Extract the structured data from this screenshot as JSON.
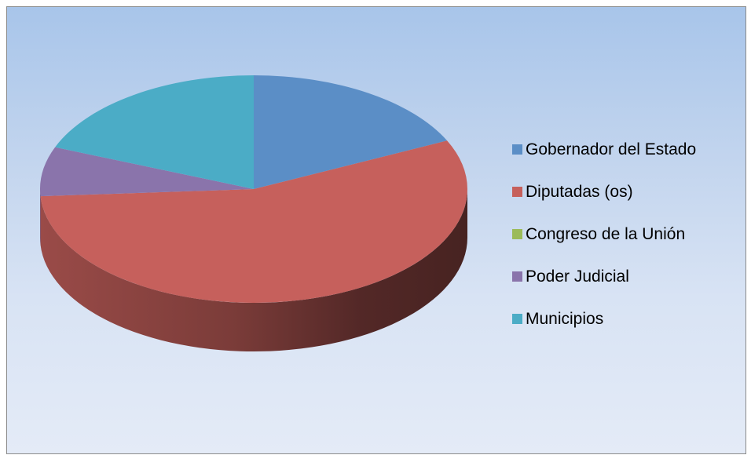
{
  "chart_data": {
    "type": "pie",
    "style": "3d-perspective",
    "title": "",
    "categories": [
      "Gobernador del Estado",
      "Diputadas (os)",
      "Congreso de la Unión",
      "Poder Judicial",
      "Municipios"
    ],
    "values": [
      18,
      56,
      0,
      7,
      19
    ],
    "colors": [
      "#5b8ec6",
      "#c6605c",
      "#9bbb59",
      "#8a74ab",
      "#4bacc6"
    ],
    "legend_position": "right"
  }
}
